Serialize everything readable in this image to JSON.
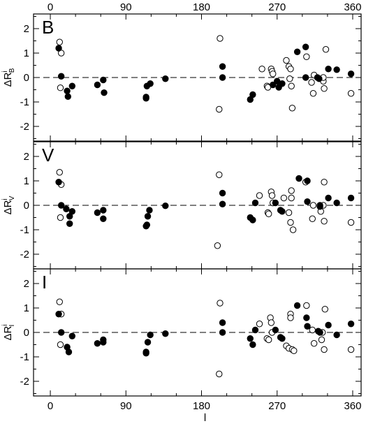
{
  "chart_data": {
    "type": "scatter",
    "xlabel": "l",
    "x_ticks": [
      "0",
      "90",
      "180",
      "270",
      "360"
    ],
    "x_tick_values": [
      0,
      90,
      180,
      270,
      360
    ],
    "xlim": [
      -20,
      370
    ],
    "ylim": [
      -2.6,
      2.6
    ],
    "y_ticks": [
      "-2",
      "-1",
      "0",
      "1",
      "2"
    ],
    "y_tick_values": [
      -2,
      -1,
      0,
      1,
      2
    ],
    "reference_line": {
      "y": 0,
      "style": "dashed"
    },
    "series_styles": {
      "filled": "filled circle",
      "open": "open circle"
    },
    "panels": [
      {
        "letter": "B",
        "ylabel_main": "ΔR",
        "ylabel_sup": "i",
        "ylabel_sub": "B",
        "filled": [
          [
            10,
            1.2
          ],
          [
            13,
            0.05
          ],
          [
            20,
            -0.55
          ],
          [
            21,
            -0.78
          ],
          [
            26,
            -0.35
          ],
          [
            56,
            -0.3
          ],
          [
            63,
            -0.1
          ],
          [
            64,
            -0.62
          ],
          [
            114,
            -0.8
          ],
          [
            114,
            -0.85
          ],
          [
            115,
            -0.35
          ],
          [
            119,
            -0.25
          ],
          [
            137,
            -0.05
          ],
          [
            205,
            0.45
          ],
          [
            205,
            0.0
          ],
          [
            238,
            -0.9
          ],
          [
            241,
            -0.7
          ],
          [
            265,
            -0.3
          ],
          [
            270,
            -0.15
          ],
          [
            272,
            -0.4
          ],
          [
            276,
            -0.25
          ],
          [
            294,
            1.05
          ],
          [
            304,
            1.25
          ],
          [
            304,
            0.0
          ],
          [
            318,
            0.0
          ],
          [
            320,
            -0.05
          ],
          [
            331,
            0.35
          ],
          [
            341,
            0.32
          ],
          [
            358,
            0.15
          ]
        ],
        "open": [
          [
            11,
            1.45
          ],
          [
            13,
            1.0
          ],
          [
            12,
            -0.42
          ],
          [
            252,
            0.35
          ],
          [
            258,
            -0.35
          ],
          [
            259,
            -0.4
          ],
          [
            263,
            0.35
          ],
          [
            264,
            0.25
          ],
          [
            265,
            0.15
          ],
          [
            281,
            0.7
          ],
          [
            284,
            0.45
          ],
          [
            286,
            0.35
          ],
          [
            285,
            -0.05
          ],
          [
            287,
            -0.35
          ],
          [
            288,
            -1.25
          ],
          [
            305,
            0.85
          ],
          [
            314,
            0.1
          ],
          [
            311,
            -0.2
          ],
          [
            313,
            -0.65
          ],
          [
            325,
            -0.15
          ],
          [
            325,
            0.0
          ],
          [
            326,
            -0.45
          ],
          [
            328,
            1.15
          ],
          [
            358,
            -0.65
          ],
          [
            202,
            1.6
          ],
          [
            201,
            -1.3
          ]
        ]
      },
      {
        "letter": "V",
        "ylabel_main": "ΔR",
        "ylabel_sup": "i",
        "ylabel_sub": "V",
        "filled": [
          [
            10,
            0.95
          ],
          [
            13,
            0.0
          ],
          [
            19,
            -0.15
          ],
          [
            23,
            -0.45
          ],
          [
            23,
            -0.75
          ],
          [
            26,
            -0.25
          ],
          [
            56,
            -0.3
          ],
          [
            63,
            -0.2
          ],
          [
            63,
            -0.55
          ],
          [
            115,
            -0.8
          ],
          [
            114,
            -0.85
          ],
          [
            116,
            -0.45
          ],
          [
            118,
            -0.2
          ],
          [
            137,
            -0.02
          ],
          [
            205,
            0.5
          ],
          [
            205,
            0.05
          ],
          [
            238,
            -0.5
          ],
          [
            241,
            -0.6
          ],
          [
            244,
            0.1
          ],
          [
            268,
            0.1
          ],
          [
            274,
            -0.2
          ],
          [
            276,
            -0.25
          ],
          [
            296,
            1.1
          ],
          [
            306,
            1.0
          ],
          [
            306,
            0.15
          ],
          [
            321,
            0.0
          ],
          [
            321,
            -0.05
          ],
          [
            331,
            0.3
          ],
          [
            341,
            0.1
          ],
          [
            358,
            0.3
          ]
        ],
        "open": [
          [
            11,
            1.35
          ],
          [
            13,
            0.85
          ],
          [
            12,
            -0.5
          ],
          [
            249,
            0.4
          ],
          [
            259,
            -0.3
          ],
          [
            260,
            -0.35
          ],
          [
            263,
            0.55
          ],
          [
            264,
            0.4
          ],
          [
            265,
            0.1
          ],
          [
            278,
            0.3
          ],
          [
            284,
            -0.3
          ],
          [
            287,
            0.6
          ],
          [
            287,
            0.3
          ],
          [
            286,
            -0.7
          ],
          [
            289,
            -1.0
          ],
          [
            304,
            0.95
          ],
          [
            313,
            0.0
          ],
          [
            312,
            -0.55
          ],
          [
            322,
            -0.25
          ],
          [
            325,
            0.0
          ],
          [
            326,
            -0.65
          ],
          [
            326,
            0.95
          ],
          [
            358,
            -0.7
          ],
          [
            201,
            1.25
          ],
          [
            199,
            -1.65
          ]
        ]
      },
      {
        "letter": "I",
        "ylabel_main": "ΔR",
        "ylabel_sup": "i",
        "ylabel_sub": "I",
        "filled": [
          [
            10,
            0.75
          ],
          [
            13,
            0.0
          ],
          [
            20,
            -0.6
          ],
          [
            22,
            -0.8
          ],
          [
            26,
            -0.15
          ],
          [
            56,
            -0.45
          ],
          [
            63,
            -0.3
          ],
          [
            63,
            -0.4
          ],
          [
            114,
            -0.8
          ],
          [
            114,
            -0.85
          ],
          [
            116,
            -0.4
          ],
          [
            119,
            -0.1
          ],
          [
            137,
            -0.05
          ],
          [
            205,
            0.4
          ],
          [
            205,
            0.0
          ],
          [
            238,
            -0.25
          ],
          [
            241,
            -0.5
          ],
          [
            244,
            0.1
          ],
          [
            268,
            0.1
          ],
          [
            274,
            -0.2
          ],
          [
            276,
            -0.25
          ],
          [
            294,
            1.1
          ],
          [
            305,
            0.6
          ],
          [
            306,
            0.25
          ],
          [
            319,
            0.05
          ],
          [
            321,
            0.0
          ],
          [
            331,
            0.3
          ],
          [
            341,
            -0.1
          ],
          [
            358,
            0.35
          ]
        ],
        "open": [
          [
            11,
            1.25
          ],
          [
            13,
            0.75
          ],
          [
            12,
            -0.5
          ],
          [
            249,
            0.35
          ],
          [
            258,
            -0.25
          ],
          [
            260,
            -0.3
          ],
          [
            262,
            0.6
          ],
          [
            263,
            0.4
          ],
          [
            264,
            0.0
          ],
          [
            281,
            -0.55
          ],
          [
            284,
            -0.65
          ],
          [
            286,
            0.75
          ],
          [
            286,
            0.6
          ],
          [
            288,
            -0.7
          ],
          [
            290,
            -0.75
          ],
          [
            305,
            1.1
          ],
          [
            314,
            -0.45
          ],
          [
            312,
            0.1
          ],
          [
            323,
            -0.3
          ],
          [
            324,
            0.0
          ],
          [
            326,
            -0.7
          ],
          [
            327,
            0.95
          ],
          [
            358,
            -0.7
          ],
          [
            202,
            1.2
          ],
          [
            201,
            -1.7
          ]
        ]
      }
    ]
  }
}
